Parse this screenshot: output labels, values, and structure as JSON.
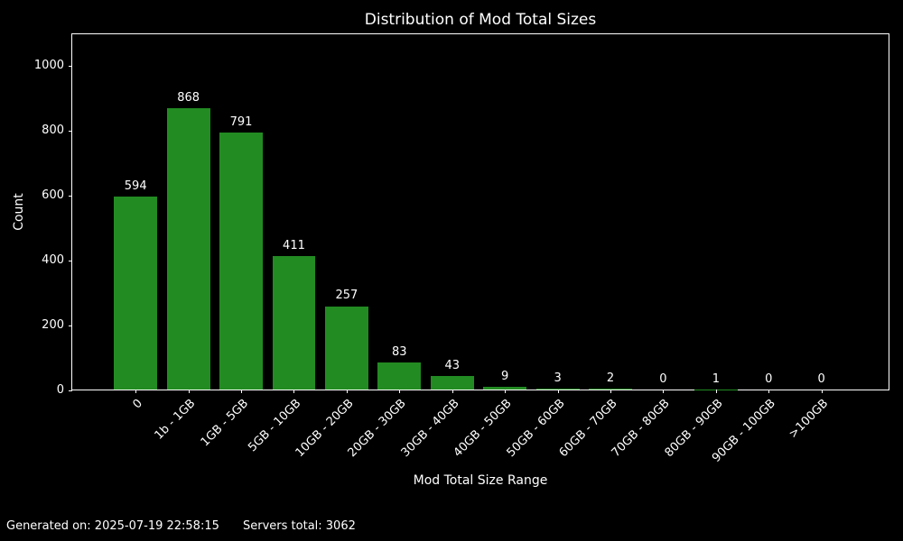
{
  "chart_data": {
    "type": "bar",
    "title": "Distribution of Mod Total Sizes",
    "xlabel": "Mod Total Size Range",
    "ylabel": "Count",
    "categories": [
      "0",
      "1b - 1GB",
      "1GB - 5GB",
      "5GB - 10GB",
      "10GB - 20GB",
      "20GB - 30GB",
      "30GB - 40GB",
      "40GB - 50GB",
      "50GB - 60GB",
      "60GB - 70GB",
      "70GB - 80GB",
      "80GB - 90GB",
      "90GB - 100GB",
      ">100GB"
    ],
    "values": [
      594,
      868,
      791,
      411,
      257,
      83,
      43,
      9,
      3,
      2,
      0,
      1,
      0,
      0
    ],
    "yticks": [
      0,
      200,
      400,
      600,
      800,
      1000
    ],
    "ylim": [
      0,
      1100
    ],
    "bar_labels_shown": true,
    "grid": "off",
    "legend": "none",
    "bar_color": "#228b22",
    "background_color": "#000000",
    "text_color": "#ffffff",
    "xtick_rotation_deg": 45
  },
  "footer": {
    "generated": "Generated on: 2025-07-19 22:58:15",
    "servers_total": "Servers total: 3062"
  }
}
